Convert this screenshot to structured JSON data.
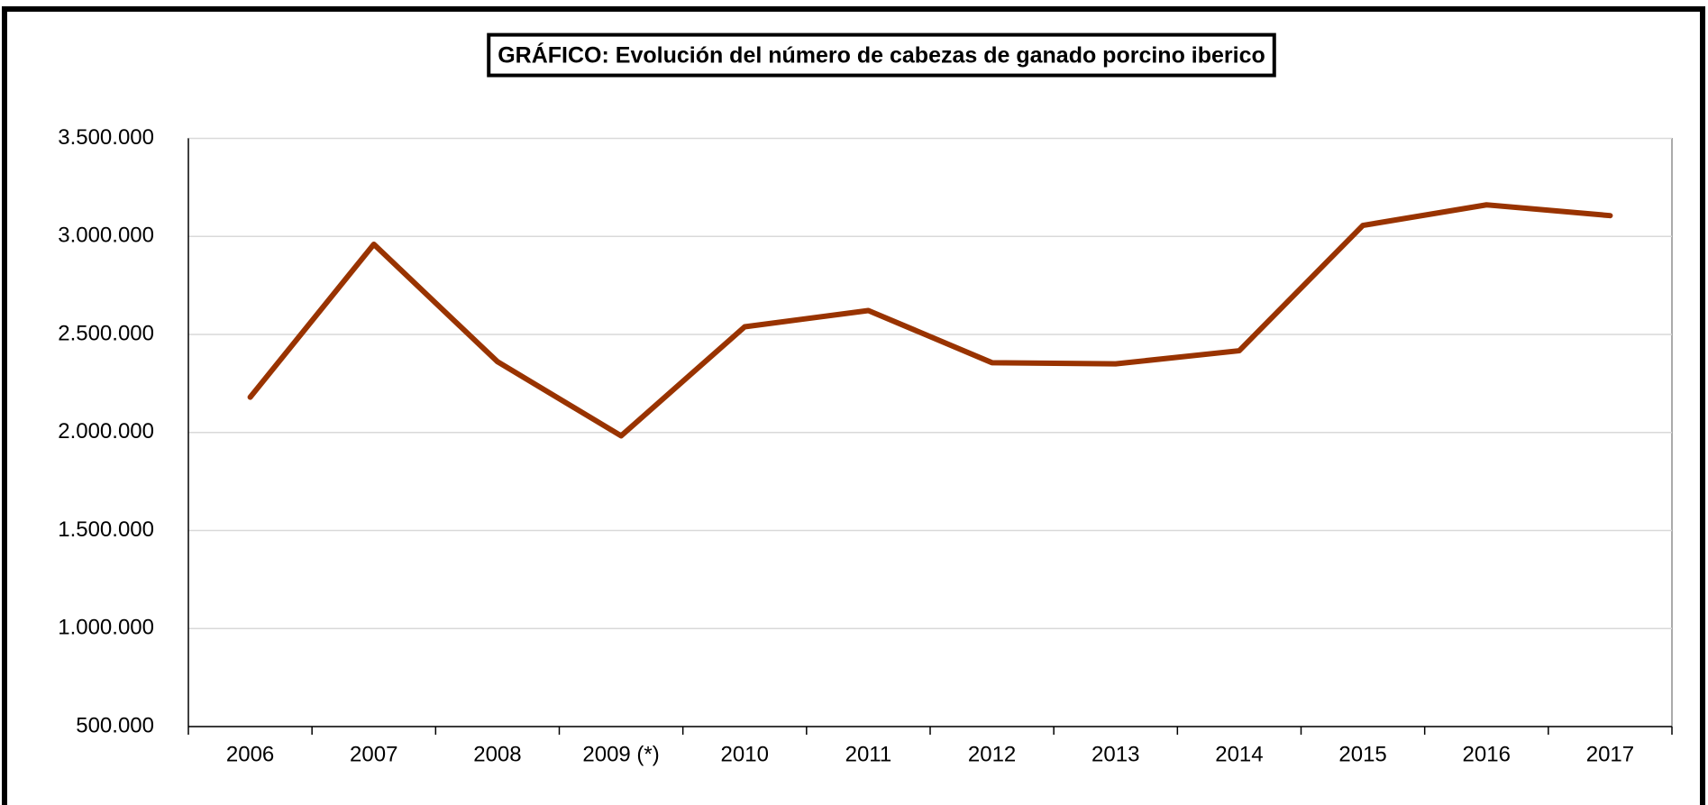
{
  "chart_data": {
    "type": "line",
    "title": "GRÁFICO: Evolución del número de cabezas de ganado porcino iberico",
    "categories": [
      "2006",
      "2007",
      "2008",
      "2009 (*)",
      "2010",
      "2011",
      "2012",
      "2013",
      "2014",
      "2015",
      "2016",
      "2017"
    ],
    "series": [
      {
        "name": "Cabezas de ganado porcino iberico",
        "color": "#993300",
        "values": [
          2180000,
          2960000,
          2361000,
          1983000,
          2539000,
          2622000,
          2356000,
          2350000,
          2417000,
          3056000,
          3161000,
          3106000
        ]
      }
    ],
    "ylim": [
      500000,
      3500000
    ],
    "yticks": [
      {
        "value": 500000,
        "label": "500.000"
      },
      {
        "value": 1000000,
        "label": "1.000.000"
      },
      {
        "value": 1500000,
        "label": "1.500.000"
      },
      {
        "value": 2000000,
        "label": "2.000.000"
      },
      {
        "value": 2500000,
        "label": "2.500.000"
      },
      {
        "value": 3000000,
        "label": "3.000.000"
      },
      {
        "value": 3500000,
        "label": "3.500.000"
      }
    ],
    "grid": true
  }
}
